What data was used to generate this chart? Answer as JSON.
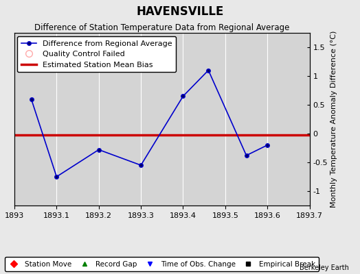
{
  "title": "HAVENSVILLE",
  "subtitle": "Difference of Station Temperature Data from Regional Average",
  "ylabel_right": "Monthly Temperature Anomaly Difference (°C)",
  "watermark": "Berkeley Earth",
  "xlim": [
    1893.0,
    1893.7
  ],
  "ylim": [
    -1.25,
    1.75
  ],
  "yticks": [
    -1.0,
    -0.5,
    0.0,
    0.5,
    1.0,
    1.5
  ],
  "ytick_labels": [
    "-1",
    "-0.5",
    "0",
    "0.5",
    "1",
    "1.5"
  ],
  "xticks": [
    1893.0,
    1893.1,
    1893.2,
    1893.3,
    1893.4,
    1893.5,
    1893.6,
    1893.7
  ],
  "xtick_labels": [
    "1893",
    "1893.1",
    "1893.2",
    "1893.3",
    "1893.4",
    "1893.5",
    "1893.6",
    "1893.7"
  ],
  "x_data": [
    1893.04,
    1893.1,
    1893.2,
    1893.3,
    1893.4,
    1893.46,
    1893.55,
    1893.6
  ],
  "y_data": [
    0.6,
    -0.75,
    -0.28,
    -0.55,
    0.65,
    1.1,
    -0.38,
    -0.2
  ],
  "bias_value": -0.02,
  "line_color": "#0000cc",
  "marker_face": "#000066",
  "bias_color": "#cc0000",
  "background_color": "#e8e8e8",
  "plot_bg_color": "#d4d4d4",
  "grid_color": "white",
  "title_fontsize": 12,
  "subtitle_fontsize": 8.5,
  "tick_fontsize": 8,
  "ylabel_fontsize": 8,
  "legend_fontsize": 8
}
